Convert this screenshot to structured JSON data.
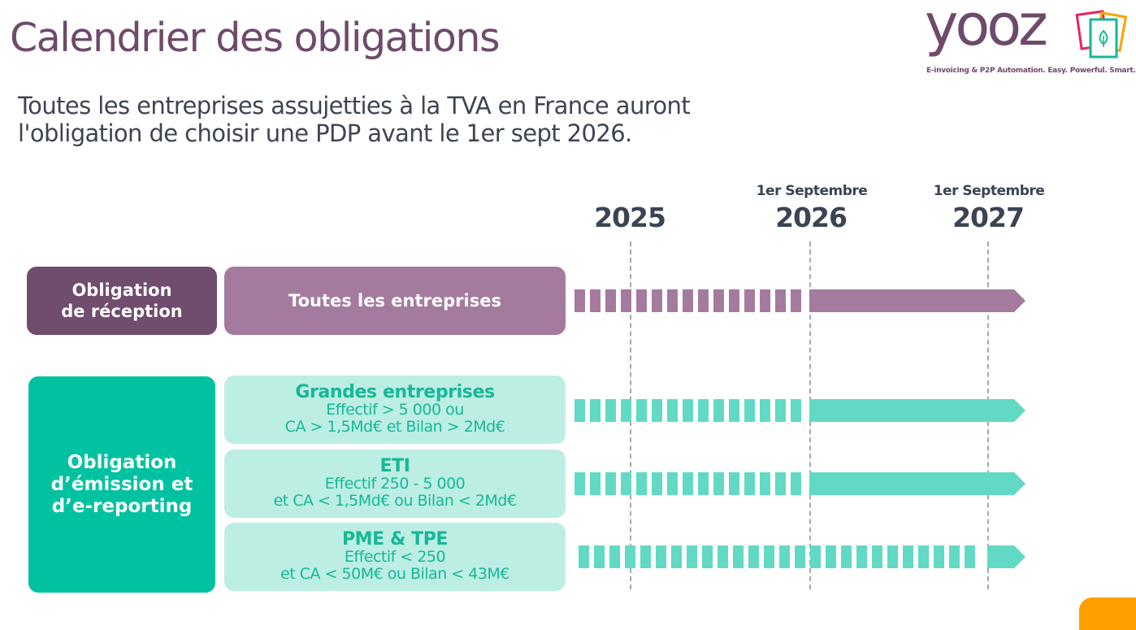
{
  "slide": {
    "title": "Calendrier des obligations",
    "subtitle_line1": "Toutes les entreprises assujetties à la TVA en France auront",
    "subtitle_line2": "l'obligation de choisir une PDP avant le 1er sept 2026."
  },
  "logo": {
    "wordmark": "yooz",
    "tagline": "E-invoicing & P2P Automation.  Easy.  Powerful.  Smart.",
    "colors": {
      "brand": "#6e4a6b",
      "pink": "#e6245e",
      "orange": "#ffa000",
      "teal": "#16b897"
    },
    "icon": "leaf-cards-icon"
  },
  "timeline": {
    "milestones": [
      {
        "sub": "",
        "year": "2025"
      },
      {
        "sub": "1er Septembre",
        "year": "2026"
      },
      {
        "sub": "1er Septembre",
        "year": "2027"
      }
    ]
  },
  "groups": [
    {
      "label_line1": "Obligation",
      "label_line2": "de réception",
      "label_line3": "",
      "color_dark": "#704c6d",
      "color_light": "#a47b9e",
      "rows": [
        {
          "title": "Toutes les entreprises",
          "line1": "",
          "line2": "",
          "solid_from": "2026-09",
          "arrow_to": "2027+"
        }
      ]
    },
    {
      "label_line1": "Obligation",
      "label_line2": "d’émission et",
      "label_line3": "d’e-reporting",
      "color_dark": "#00c2a0",
      "color_light": "#bdeee4",
      "bar_color": "#62d9c4",
      "rows": [
        {
          "title": "Grandes entreprises",
          "line1": "Effectif > 5 000 ou",
          "line2": "CA > 1,5Md€ et Bilan > 2Md€",
          "solid_from": "2026-09"
        },
        {
          "title": "ETI",
          "line1": "Effectif 250 - 5 000",
          "line2": "et CA < 1,5Md€ ou Bilan < 2Md€",
          "solid_from": "2026-09"
        },
        {
          "title": "PME & TPE",
          "line1": "Effectif < 250",
          "line2": "et CA < 50M€ ou Bilan < 43M€",
          "solid_from": "2027-09"
        }
      ]
    }
  ]
}
